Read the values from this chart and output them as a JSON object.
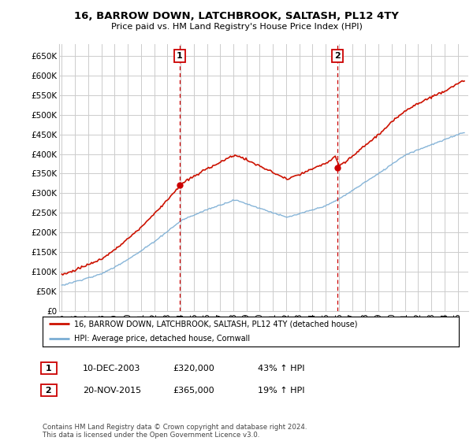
{
  "title": "16, BARROW DOWN, LATCHBROOK, SALTASH, PL12 4TY",
  "subtitle": "Price paid vs. HM Land Registry's House Price Index (HPI)",
  "ytick_values": [
    0,
    50000,
    100000,
    150000,
    200000,
    250000,
    300000,
    350000,
    400000,
    450000,
    500000,
    550000,
    600000,
    650000
  ],
  "ylabel_ticks": [
    "£0",
    "£50K",
    "£100K",
    "£150K",
    "£200K",
    "£250K",
    "£300K",
    "£350K",
    "£400K",
    "£450K",
    "£500K",
    "£550K",
    "£600K",
    "£650K"
  ],
  "ylim": [
    0,
    680000
  ],
  "xlim_start": 1994.8,
  "xlim_end": 2025.8,
  "sale1_x": 2003.94,
  "sale1_y": 320000,
  "sale2_x": 2015.89,
  "sale2_y": 365000,
  "vline_color": "#cc0000",
  "marker_color": "#cc0000",
  "hpi_line_color": "#7aadd4",
  "sale_line_color": "#cc1100",
  "legend1_label": "16, BARROW DOWN, LATCHBROOK, SALTASH, PL12 4TY (detached house)",
  "legend2_label": "HPI: Average price, detached house, Cornwall",
  "table_rows": [
    {
      "num": "1",
      "date": "10-DEC-2003",
      "price": "£320,000",
      "pct": "43% ↑ HPI"
    },
    {
      "num": "2",
      "date": "20-NOV-2015",
      "price": "£365,000",
      "pct": "19% ↑ HPI"
    }
  ],
  "footnote": "Contains HM Land Registry data © Crown copyright and database right 2024.\nThis data is licensed under the Open Government Licence v3.0.",
  "background_color": "#ffffff",
  "grid_color": "#cccccc",
  "xtick_years": [
    1995,
    1996,
    1997,
    1998,
    1999,
    2000,
    2001,
    2002,
    2003,
    2004,
    2005,
    2006,
    2007,
    2008,
    2009,
    2010,
    2011,
    2012,
    2013,
    2014,
    2015,
    2016,
    2017,
    2018,
    2019,
    2020,
    2021,
    2022,
    2023,
    2024,
    2025
  ]
}
